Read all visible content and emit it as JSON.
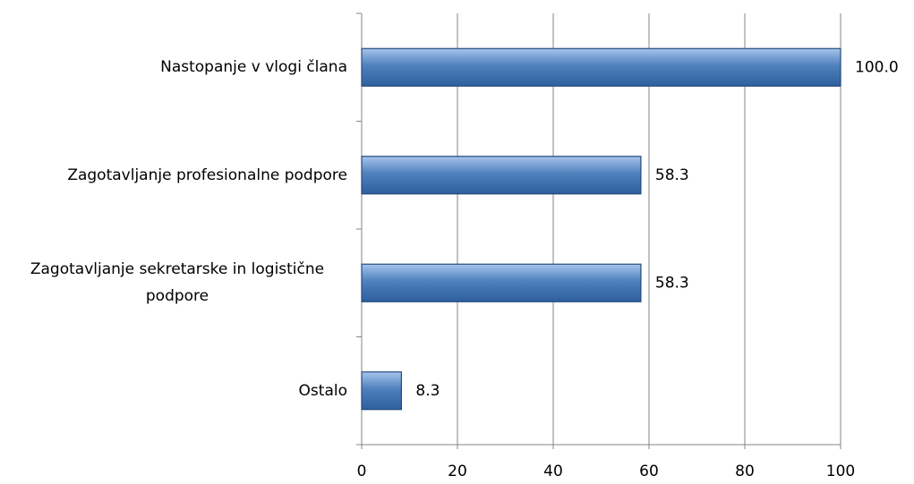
{
  "chart_data": {
    "type": "hbar",
    "categories": [
      "Nastopanje v vlogi člana",
      "Zagotavljanje profesionalne podpore",
      "Zagotavljanje sekretarske in logistične podpore",
      "Ostalo"
    ],
    "values": [
      100,
      58.3,
      58.3,
      8.3
    ],
    "value_labels": [
      "100.0",
      "58.3",
      "58.3",
      "8.3"
    ],
    "color": "#4f81bd",
    "xlim": [
      0,
      100
    ],
    "xticks": [
      0,
      20,
      40,
      60,
      80,
      100
    ],
    "grid": true
  }
}
